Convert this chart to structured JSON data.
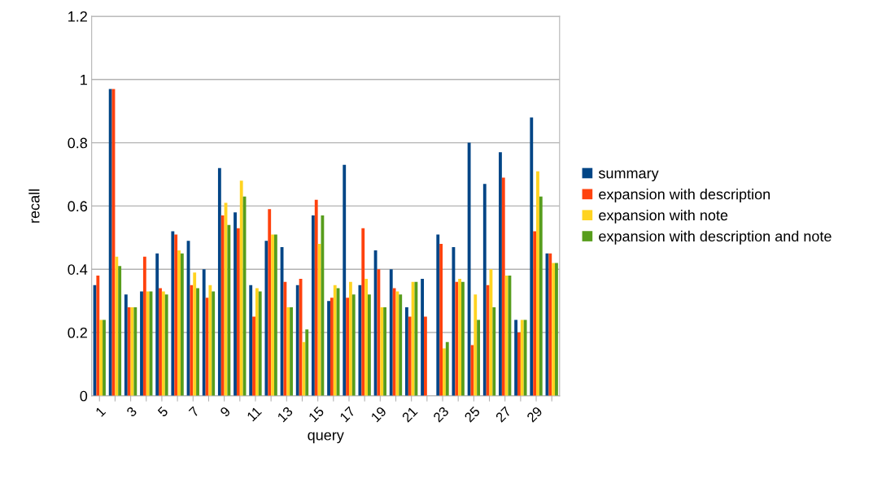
{
  "chart_data": {
    "type": "bar",
    "xlabel": "query",
    "ylabel": "recall",
    "categories": [
      "1",
      null,
      "3",
      null,
      "5",
      null,
      "7",
      null,
      "9",
      null,
      "11",
      null,
      "13",
      null,
      "15",
      null,
      "17",
      null,
      "19",
      null,
      "21",
      null,
      "23",
      null,
      "25",
      null,
      "27",
      null,
      "29",
      null
    ],
    "series": [
      {
        "name": "summary",
        "color": "#004586",
        "values": [
          0.35,
          0.97,
          0.32,
          0.33,
          0.45,
          0.52,
          0.49,
          0.4,
          0.72,
          0.58,
          0.35,
          0.49,
          0.47,
          0.35,
          0.57,
          0.3,
          0.73,
          0.35,
          0.46,
          0.4,
          0.28,
          0.37,
          0.51,
          0.47,
          0.8,
          0.67,
          0.77,
          0.24,
          0.88,
          0.45
        ]
      },
      {
        "name": "expansion with description",
        "color": "#ff420e",
        "values": [
          0.38,
          0.97,
          0.28,
          0.44,
          0.34,
          0.51,
          0.35,
          0.31,
          0.57,
          0.53,
          0.25,
          0.59,
          0.36,
          0.37,
          0.62,
          0.31,
          0.31,
          0.53,
          0.4,
          0.34,
          0.25,
          0.25,
          0.48,
          0.36,
          0.16,
          0.35,
          0.69,
          0.2,
          0.52,
          0.45
        ]
      },
      {
        "name": "expansion with note",
        "color": "#ffd320",
        "values": [
          0.24,
          0.44,
          0.28,
          0.33,
          0.33,
          0.46,
          0.39,
          0.35,
          0.61,
          0.68,
          0.34,
          0.51,
          0.28,
          0.17,
          0.48,
          0.35,
          0.36,
          0.37,
          0.28,
          0.33,
          0.36,
          0,
          0.15,
          0.37,
          0.32,
          0.4,
          0.38,
          0.24,
          0.71,
          0.42
        ]
      },
      {
        "name": "expansion with description and note",
        "color": "#579d1c",
        "values": [
          0.24,
          0.41,
          0.28,
          0.33,
          0.32,
          0.45,
          0.34,
          0.33,
          0.54,
          0.63,
          0.33,
          0.51,
          0.28,
          0.21,
          0.57,
          0.34,
          0.32,
          0.32,
          0.28,
          0.32,
          0.36,
          0,
          0.17,
          0.36,
          0.24,
          0.28,
          0.38,
          0.24,
          0.63,
          0.42
        ]
      }
    ],
    "ylim": [
      0,
      1.2
    ],
    "yticks": [
      0,
      0.2,
      0.4,
      0.6,
      0.8,
      1,
      1.2
    ],
    "grid": "y",
    "legend": "right"
  }
}
